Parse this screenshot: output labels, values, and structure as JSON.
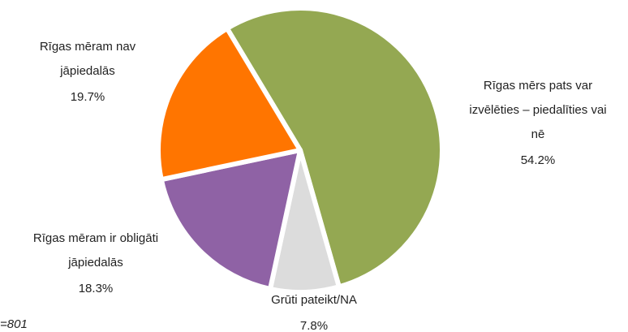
{
  "chart_data": {
    "type": "pie",
    "categories": [
      "Rīgas mērs pats var izvēlēties – piedalīties vai nē",
      "Grūti pateikt/NA",
      "Rīgas mēram ir obligāti jāpiedalās",
      "Rīgas mēram nav jāpiedalās"
    ],
    "values": [
      54.2,
      7.8,
      18.3,
      19.7
    ],
    "value_labels": [
      "54.2%",
      "7.8%",
      "18.3%",
      "19.7%"
    ],
    "colors": [
      "#94a852",
      "#dcdcdc",
      "#8f62a5",
      "#ff7500"
    ],
    "note": "=801"
  }
}
